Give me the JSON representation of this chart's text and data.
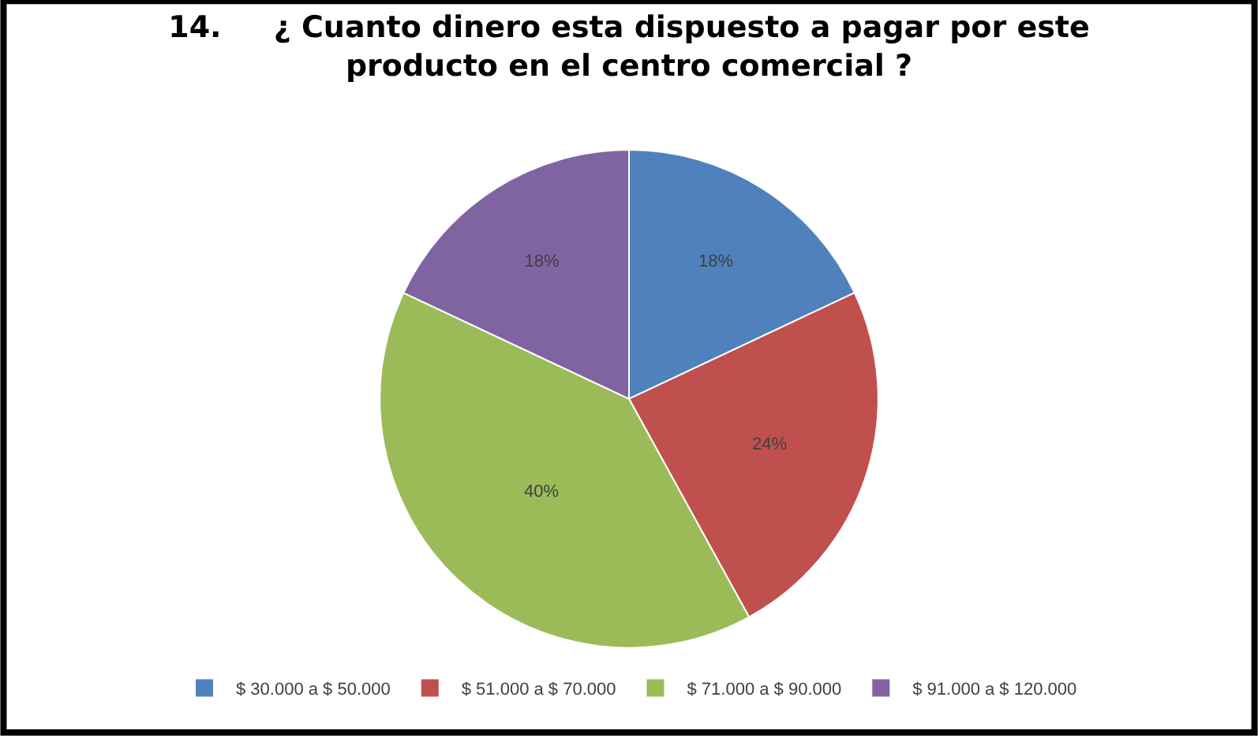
{
  "chart_data": {
    "type": "pie",
    "title": "14.     ¿ Cuanto dinero esta dispuesto a pagar por este\nproducto en el centro comercial ?",
    "categories": [
      "$ 30.000 a $ 50.000",
      "$ 51.000 a $ 70.000",
      "$ 71.000 a $ 90.000",
      "$ 91.000 a $ 120.000"
    ],
    "values": [
      18,
      24,
      40,
      18
    ],
    "colors": [
      "#4f81bd",
      "#c0504d",
      "#9bbb59",
      "#8064a2"
    ],
    "value_labels": [
      "18%",
      "24%",
      "40%",
      "18%"
    ],
    "legend": "bottom"
  }
}
